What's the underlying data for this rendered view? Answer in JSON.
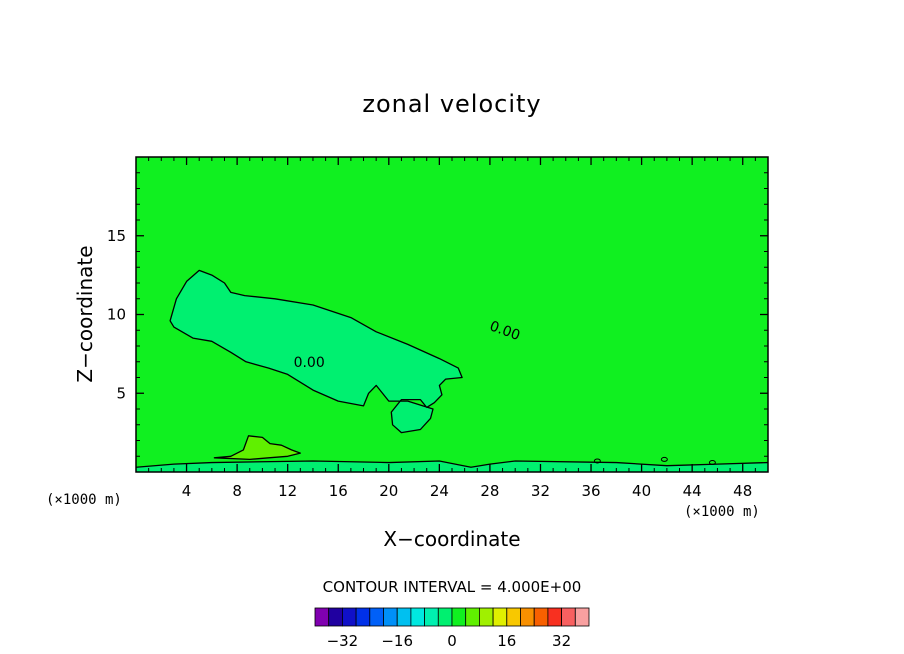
{
  "chart_data": {
    "type": "heatmap",
    "title": "zonal velocity",
    "xlabel": "X−coordinate",
    "ylabel": "Z−coordinate",
    "x_units": "(×1000 m)",
    "y_units": "(×1000 m)",
    "xlim": [
      0,
      50
    ],
    "ylim": [
      0,
      20
    ],
    "x_ticks": [
      4,
      8,
      12,
      16,
      20,
      24,
      28,
      32,
      36,
      40,
      44,
      48
    ],
    "y_ticks": [
      5,
      10,
      15
    ],
    "contour_interval_text": "CONTOUR INTERVAL = 4.000E+00",
    "contour_interval": 4,
    "colorbar": {
      "levels": [
        -36,
        -32,
        -28,
        -24,
        -20,
        -16,
        -12,
        -8,
        -4,
        0,
        4,
        8,
        12,
        16,
        20,
        24,
        28,
        32,
        36
      ],
      "tick_values": [
        -32,
        -16,
        0,
        16,
        32
      ],
      "tick_labels": [
        "−32",
        "−16",
        "0",
        "16",
        "32"
      ],
      "colors": [
        "#8000b0",
        "#2000a0",
        "#1010c8",
        "#0030e8",
        "#0060f8",
        "#0090f8",
        "#00c0f0",
        "#00e8e0",
        "#00f0b0",
        "#00f070",
        "#10f020",
        "#60f000",
        "#a0f000",
        "#e0f000",
        "#f8c800",
        "#f89000",
        "#f86000",
        "#f83020",
        "#f86060",
        "#f8a0a0"
      ]
    },
    "background_value_range": [
      0,
      4
    ],
    "background_color": "#10f020",
    "contours": [
      {
        "level": 0,
        "label": "0.00",
        "labels_at": [
          [
            13.7,
            7.0
          ],
          [
            29.2,
            9.0
          ]
        ],
        "region_color": "#00f070",
        "points": [
          [
            2.7,
            9.6
          ],
          [
            3.2,
            11.0
          ],
          [
            4.0,
            12.1
          ],
          [
            5.0,
            12.8
          ],
          [
            6.0,
            12.5
          ],
          [
            7.0,
            12.0
          ],
          [
            7.5,
            11.4
          ],
          [
            8.6,
            11.2
          ],
          [
            11.0,
            11.0
          ],
          [
            14.0,
            10.6
          ],
          [
            17.0,
            9.8
          ],
          [
            19.0,
            8.9
          ],
          [
            21.5,
            8.1
          ],
          [
            24.0,
            7.2
          ],
          [
            25.5,
            6.6
          ],
          [
            25.8,
            6.0
          ],
          [
            24.5,
            5.9
          ],
          [
            24.0,
            5.5
          ],
          [
            24.2,
            4.9
          ],
          [
            23.6,
            4.4
          ],
          [
            23.0,
            4.1
          ],
          [
            22.5,
            4.6
          ],
          [
            21.0,
            4.6
          ],
          [
            20.2,
            3.8
          ],
          [
            20.3,
            3.0
          ],
          [
            21.0,
            2.5
          ],
          [
            22.5,
            2.7
          ],
          [
            23.3,
            3.4
          ],
          [
            23.5,
            4.0
          ],
          [
            22.7,
            4.2
          ],
          [
            21.5,
            4.5
          ],
          [
            20.0,
            4.5
          ],
          [
            19.0,
            5.5
          ],
          [
            18.4,
            5.0
          ],
          [
            18.0,
            4.2
          ],
          [
            16.0,
            4.5
          ],
          [
            14.0,
            5.2
          ],
          [
            12.0,
            6.2
          ],
          [
            10.5,
            6.6
          ],
          [
            8.7,
            7.0
          ],
          [
            7.5,
            7.6
          ],
          [
            6.0,
            8.3
          ],
          [
            4.5,
            8.5
          ],
          [
            3.0,
            9.2
          ]
        ]
      },
      {
        "level": 4,
        "label": "",
        "region_color": "#60f000",
        "points": [
          [
            6.2,
            0.9
          ],
          [
            7.5,
            1.0
          ],
          [
            8.5,
            1.4
          ],
          [
            8.9,
            2.3
          ],
          [
            10.0,
            2.2
          ],
          [
            10.6,
            1.8
          ],
          [
            11.5,
            1.7
          ],
          [
            12.3,
            1.4
          ],
          [
            13.0,
            1.2
          ],
          [
            12.0,
            1.0
          ],
          [
            10.5,
            0.9
          ],
          [
            9.0,
            0.8
          ]
        ]
      }
    ],
    "surface_band": {
      "level": 0,
      "top_z": [
        [
          0.0,
          0.3
        ],
        [
          3.0,
          0.5
        ],
        [
          6.0,
          0.6
        ],
        [
          14.0,
          0.7
        ],
        [
          20.0,
          0.6
        ],
        [
          24.0,
          0.7
        ],
        [
          26.5,
          0.3
        ],
        [
          28.0,
          0.5
        ],
        [
          30.0,
          0.7
        ],
        [
          38.0,
          0.6
        ],
        [
          42.0,
          0.4
        ],
        [
          46.0,
          0.5
        ],
        [
          50.0,
          0.6
        ]
      ]
    }
  }
}
